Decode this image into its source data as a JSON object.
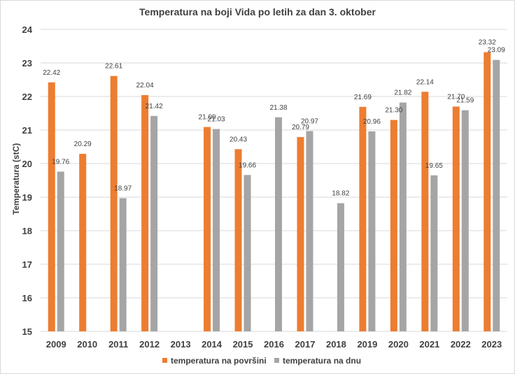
{
  "chart_data": {
    "type": "bar",
    "title": "Temperatura na boji Vida po letih za dan 3. oktober",
    "xlabel": "",
    "ylabel": "Temperatura (stC)",
    "ylim": [
      15,
      24
    ],
    "yticks": [
      "15",
      "16",
      "17",
      "18",
      "19",
      "20",
      "21",
      "22",
      "23",
      "24"
    ],
    "grid": true,
    "legend_position": "bottom",
    "categories": [
      "2009",
      "2010",
      "2011",
      "2012",
      "2013",
      "2014",
      "2015",
      "2016",
      "2017",
      "2018",
      "2019",
      "2020",
      "2021",
      "2022",
      "2023"
    ],
    "series": [
      {
        "name": "temperatura na površini",
        "color": "#ed7d31",
        "values": [
          22.42,
          20.29,
          22.61,
          22.04,
          null,
          21.09,
          20.43,
          null,
          20.79,
          null,
          21.69,
          21.3,
          22.14,
          21.7,
          23.32
        ],
        "labels": [
          "22.42",
          "20.29",
          "22.61",
          "22.04",
          null,
          "21.09",
          "20.43",
          null,
          "20.79",
          null,
          "21.69",
          "21.30",
          "22.14",
          "21.70",
          "23.32"
        ]
      },
      {
        "name": "temperatura na dnu",
        "color": "#a5a5a5",
        "values": [
          19.76,
          null,
          18.97,
          21.42,
          null,
          21.03,
          19.66,
          21.38,
          20.97,
          18.82,
          20.96,
          21.82,
          19.65,
          21.59,
          23.09
        ],
        "labels": [
          "19.76",
          null,
          "18.97",
          "21.42",
          null,
          "21.03",
          "19.66",
          "21.38",
          "20.97",
          "18.82",
          "20.96",
          "21.82",
          "19.65",
          "21.59",
          "23.09"
        ]
      }
    ]
  }
}
